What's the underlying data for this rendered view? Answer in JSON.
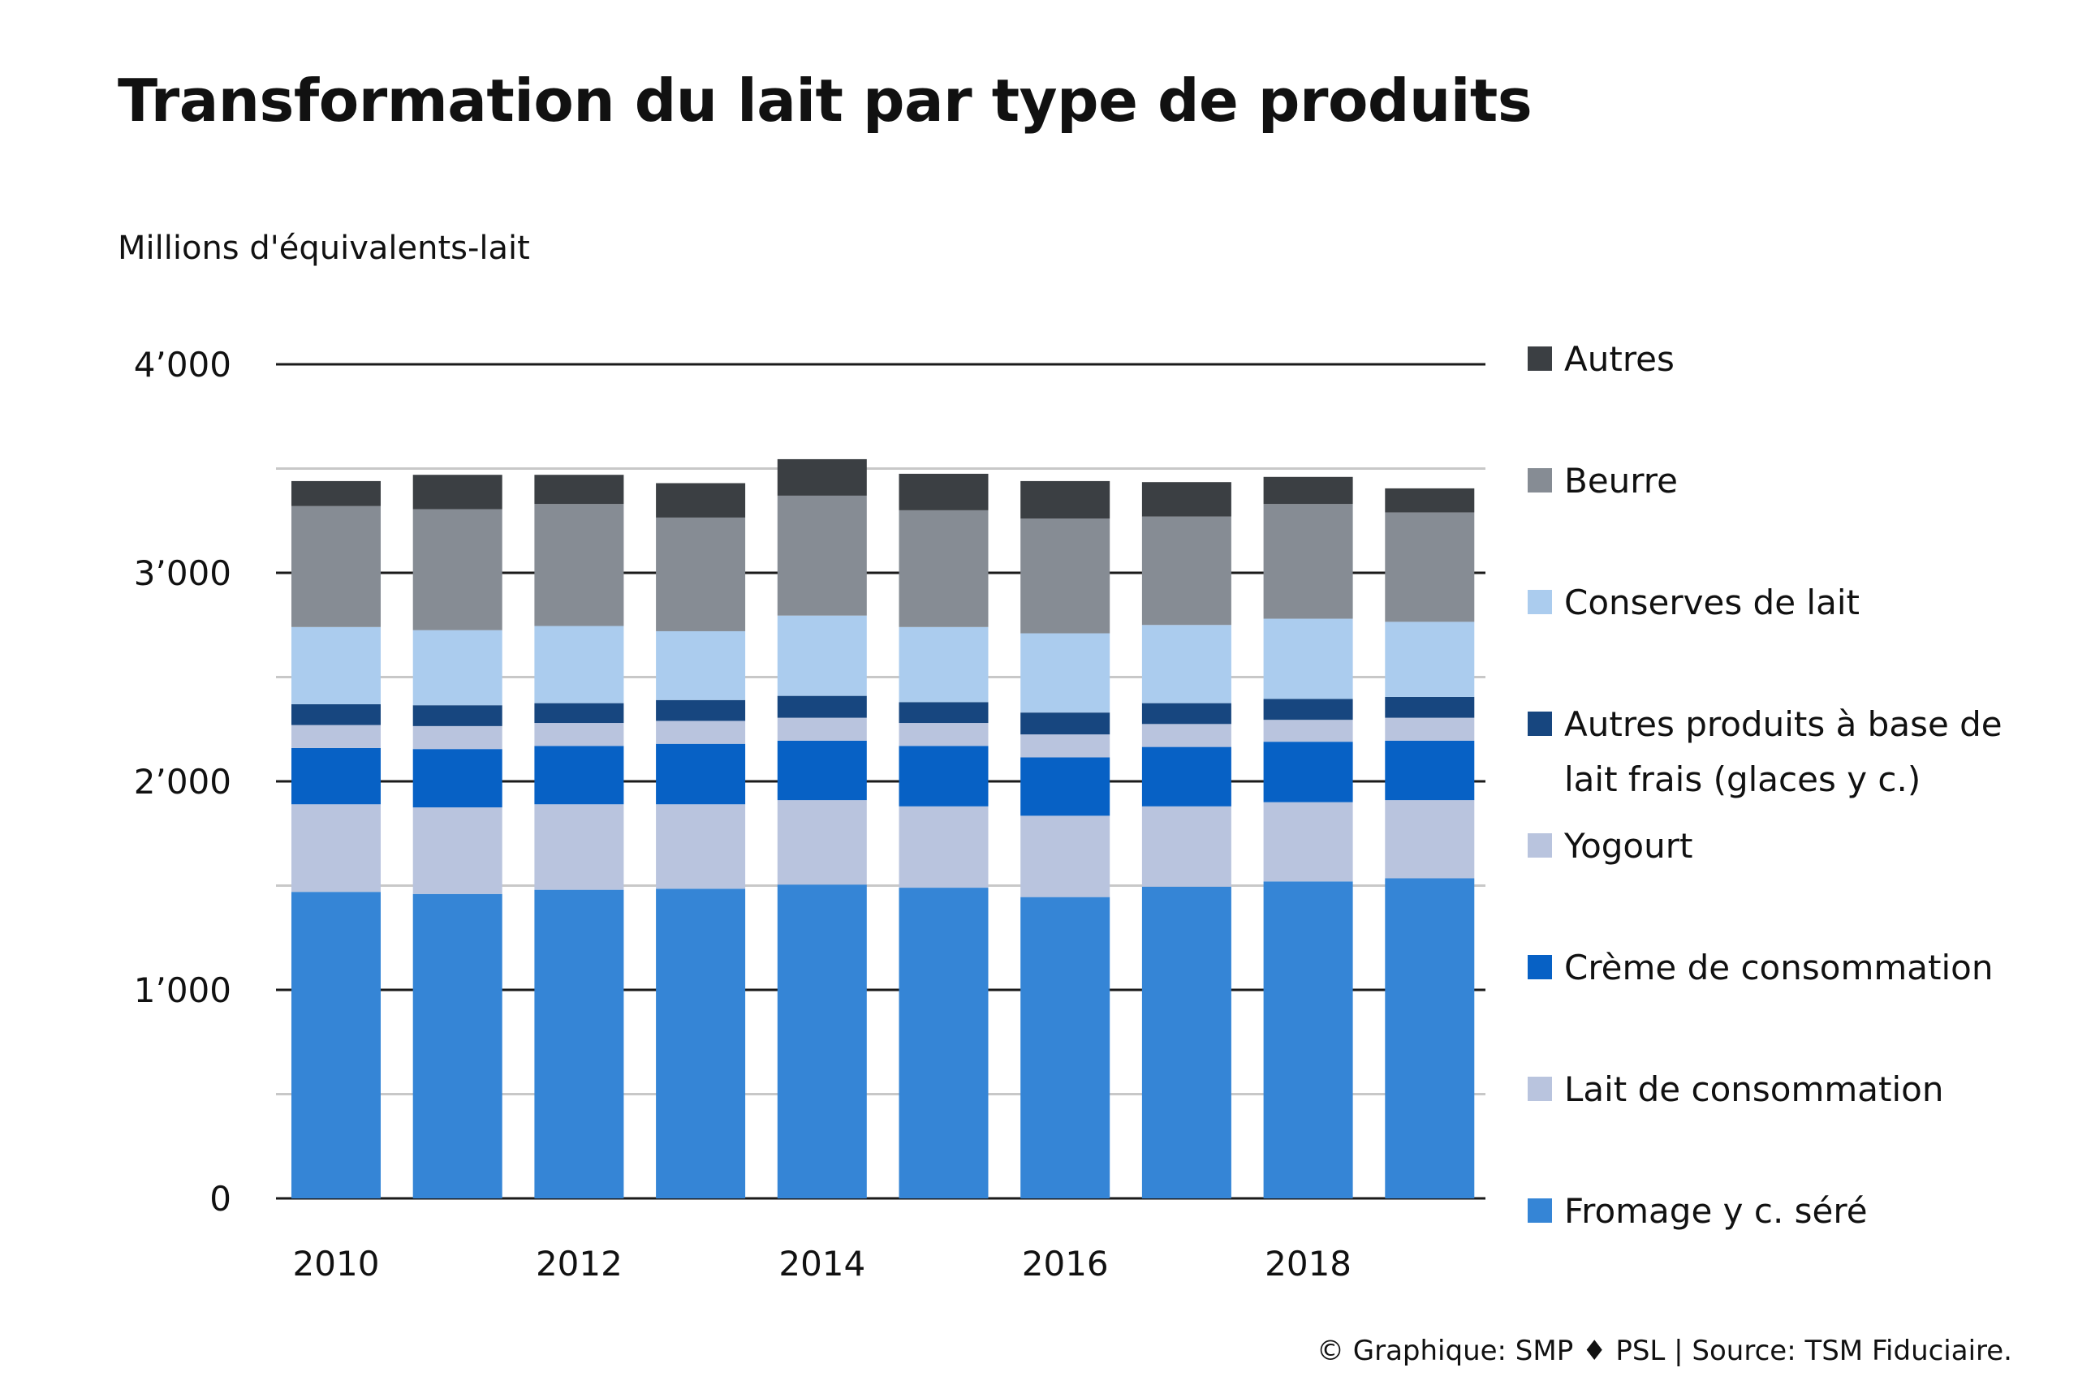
{
  "chart_data": {
    "type": "bar",
    "stacked": true,
    "title": "Transformation du lait par type de produits",
    "ylabel": "Millions d'équivalents-lait",
    "ylim": [
      0,
      4000
    ],
    "y_ticks": [
      {
        "value": 0,
        "label": "0"
      },
      {
        "value": 1000,
        "label": "1’000"
      },
      {
        "value": 2000,
        "label": "2’000"
      },
      {
        "value": 3000,
        "label": "3’000"
      },
      {
        "value": 4000,
        "label": "4’000"
      }
    ],
    "y_minor_ticks": [
      500,
      1500,
      2500,
      3500
    ],
    "categories": [
      2010,
      2011,
      2012,
      2013,
      2014,
      2015,
      2016,
      2017,
      2018,
      2019
    ],
    "x_tick_labels": [
      "2010",
      "2012",
      "2014",
      "2016",
      "2018"
    ],
    "grid": true,
    "legend_position": "right",
    "series": [
      {
        "name": "Fromage y c. séré",
        "color": "#3585d6",
        "values": [
          1470,
          1460,
          1480,
          1485,
          1505,
          1490,
          1445,
          1495,
          1520,
          1535
        ]
      },
      {
        "name": "Lait de consommation",
        "color": "#b9c4de",
        "values": [
          420,
          415,
          410,
          405,
          405,
          390,
          390,
          385,
          380,
          375
        ]
      },
      {
        "name": "Crème de consommation",
        "color": "#0761c5",
        "values": [
          270,
          280,
          280,
          290,
          285,
          290,
          280,
          285,
          290,
          285
        ]
      },
      {
        "name": "Yogourt",
        "color": "#b9c4de",
        "values": [
          110,
          110,
          110,
          110,
          110,
          110,
          110,
          110,
          105,
          110
        ]
      },
      {
        "name": "Autres produits à base de lait frais (glaces y c.)",
        "color": "#17467f",
        "values": [
          100,
          100,
          95,
          100,
          105,
          100,
          105,
          100,
          100,
          100
        ]
      },
      {
        "name": "Conserves de lait",
        "color": "#abccee",
        "values": [
          370,
          360,
          370,
          330,
          385,
          360,
          380,
          375,
          385,
          360
        ]
      },
      {
        "name": "Beurre",
        "color": "#868c94",
        "values": [
          580,
          580,
          585,
          545,
          575,
          560,
          550,
          520,
          550,
          525
        ]
      },
      {
        "name": "Autres",
        "color": "#3b3f43",
        "values": [
          120,
          165,
          140,
          165,
          175,
          175,
          180,
          165,
          130,
          115
        ]
      }
    ]
  },
  "credit": "© Graphique: SMP ♦ PSL | Source: TSM Fiduciaire."
}
